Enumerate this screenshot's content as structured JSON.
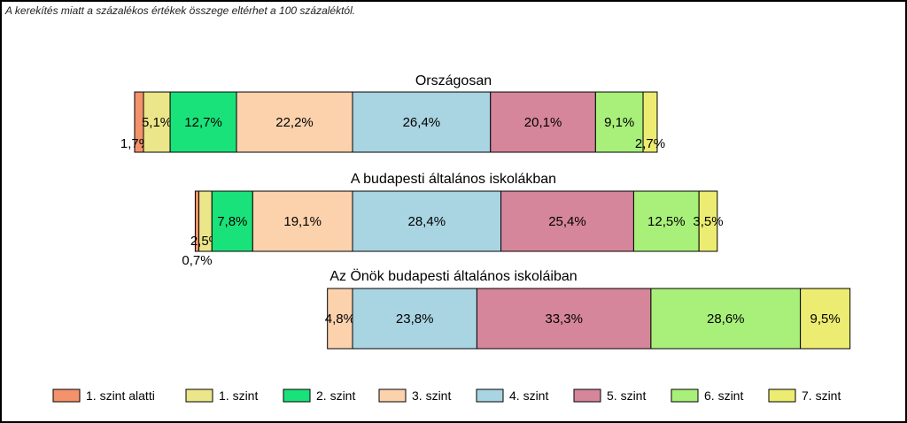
{
  "note": "A kerekítés miatt a  százalékos értékek összege eltérhet a 100 százaléktól.",
  "chart_data": {
    "type": "bar",
    "orientation": "horizontal-stacked",
    "categories": [
      "Országosan",
      "A budapesti általános iskolákban",
      "Az Önök budapesti általános iskoláiban"
    ],
    "series": [
      {
        "name": "1. szint alatti",
        "color": "#f4926c",
        "values": [
          1.7,
          0.7,
          0
        ]
      },
      {
        "name": "1. szint",
        "color": "#ece68a",
        "values": [
          5.1,
          2.5,
          0
        ]
      },
      {
        "name": "2. szint",
        "color": "#1ae27a",
        "values": [
          12.7,
          7.8,
          0
        ]
      },
      {
        "name": "3. szint",
        "color": "#fcd2ad",
        "values": [
          22.2,
          19.1,
          4.8
        ]
      },
      {
        "name": "4. szint",
        "color": "#a9d4e2",
        "values": [
          26.4,
          28.4,
          23.8
        ]
      },
      {
        "name": "5. szint",
        "color": "#d6869a",
        "values": [
          20.1,
          25.4,
          33.3
        ]
      },
      {
        "name": "6. szint",
        "color": "#a8f07a",
        "values": [
          9.1,
          12.5,
          28.6
        ]
      },
      {
        "name": "7. szint",
        "color": "#ecec72",
        "values": [
          2.7,
          3.5,
          9.5
        ]
      }
    ],
    "labels": [
      [
        "1,7%",
        "5,1%",
        "12,7%",
        "22,2%",
        "26,4%",
        "20,1%",
        "9,1%",
        "2,7%"
      ],
      [
        "0,7%",
        "2,5%",
        "7,8%",
        "19,1%",
        "28,4%",
        "25,4%",
        "12,5%",
        "3,5%"
      ],
      [
        "",
        "",
        "",
        "4,8%",
        "23,8%",
        "33,3%",
        "28,6%",
        "9,5%"
      ]
    ],
    "alignment": "diverging-at-level-3-4-boundary",
    "legend_position": "bottom"
  }
}
